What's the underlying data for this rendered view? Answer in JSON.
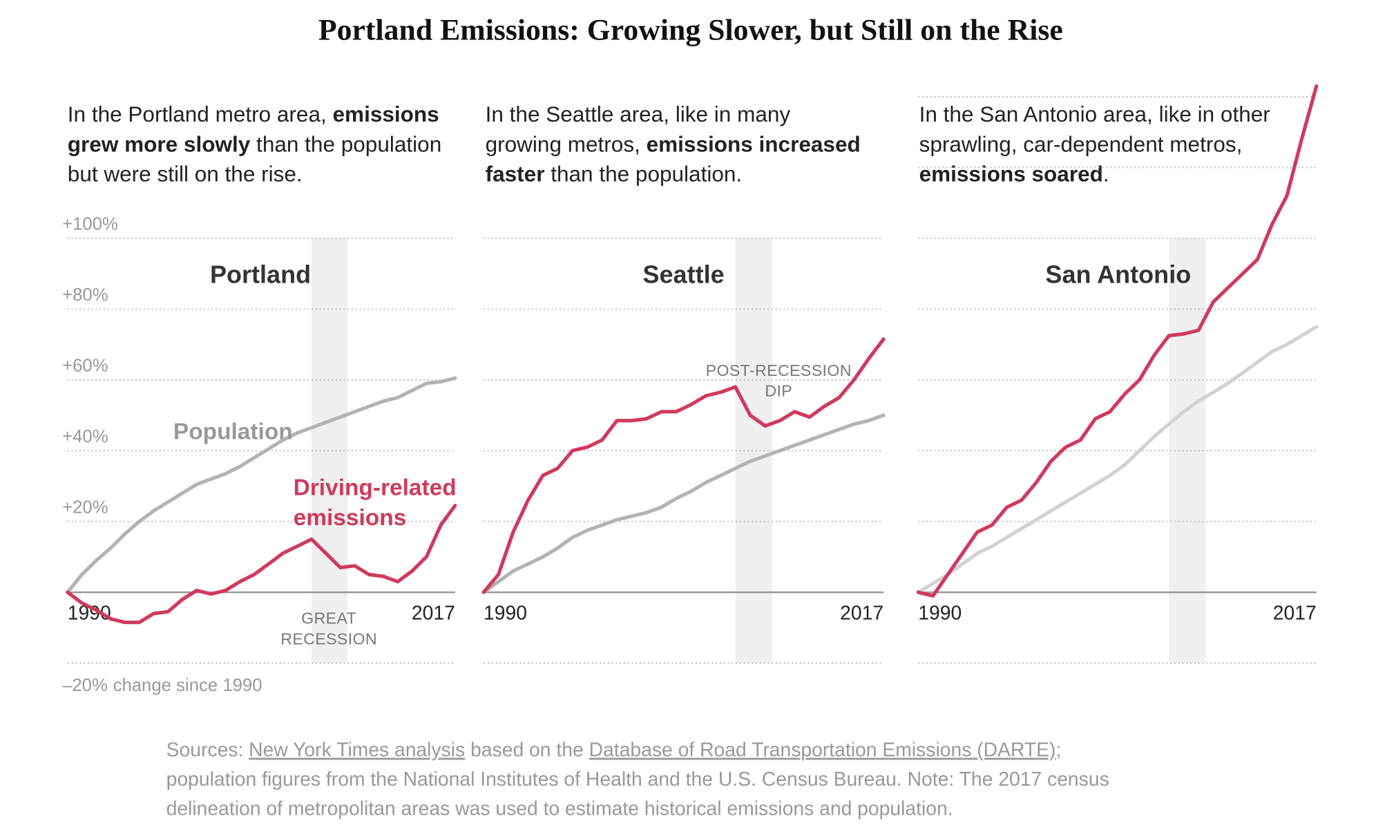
{
  "title": "Portland Emissions: Growing Slower, but Still on the Rise",
  "sources": [
    [
      {
        "text": "Sources: "
      },
      {
        "text": "New York Times analysis",
        "link": true
      },
      {
        "text": " based on the "
      },
      {
        "text": "Database of Road Transportation Emissions (DARTE)",
        "link": true
      },
      {
        "text": ";"
      }
    ],
    [
      {
        "text": "population figures from the National Institutes of Health and the U.S. Census Bureau. Note: The 2017 census"
      }
    ],
    [
      {
        "text": "delineation of metropolitan areas was used to estimate historical emissions and population."
      }
    ]
  ],
  "chart_data": [
    {
      "type": "line",
      "title": "Portland",
      "intro": [
        [
          {
            "text": "In the Portland metro area, "
          },
          {
            "text": "emissions",
            "bold": true
          }
        ],
        [
          {
            "text": "grew more slowly",
            "bold": true
          },
          {
            "text": " than the population"
          }
        ],
        [
          {
            "text": "but were still on the rise."
          }
        ]
      ],
      "x": [
        1990,
        1991,
        1992,
        1993,
        1994,
        1995,
        1996,
        1997,
        1998,
        1999,
        2000,
        2001,
        2002,
        2003,
        2004,
        2005,
        2006,
        2007,
        2008,
        2009,
        2010,
        2011,
        2012,
        2013,
        2014,
        2015,
        2016,
        2017
      ],
      "xlim": [
        1990,
        2017
      ],
      "xticks": [
        1990,
        2017
      ],
      "ylim": [
        -20,
        100
      ],
      "yticks": [
        {
          "value": -20,
          "label": "–20%"
        },
        {
          "value": 20,
          "label": "+20%"
        },
        {
          "value": 40,
          "label": "+40%"
        },
        {
          "value": 60,
          "label": "+60%"
        },
        {
          "value": 80,
          "label": "+80%"
        },
        {
          "value": 100,
          "label": "+100%"
        }
      ],
      "y_axis_note": "change since 1990",
      "recession": [
        2007,
        2009.5
      ],
      "annotation": [
        "GREAT",
        "RECESSION"
      ],
      "series": [
        {
          "name": "Population",
          "color": "#b3b3b3",
          "values": [
            0,
            5,
            9,
            12.5,
            16.5,
            20,
            23,
            25.5,
            28,
            30.5,
            32,
            33.5,
            35.5,
            38,
            40.5,
            43,
            45,
            46.5,
            48,
            49.5,
            51,
            52.5,
            54,
            55,
            57,
            59,
            59.5,
            60.5
          ]
        },
        {
          "name": "Driving-related emissions",
          "color": "#cf3a5e",
          "values": [
            0,
            -3,
            -5,
            -7.5,
            -8.5,
            -8.5,
            -6,
            -5.5,
            -2,
            0.5,
            -0.5,
            0.5,
            3,
            5,
            8,
            11,
            13,
            15,
            11,
            7,
            7.5,
            5,
            4.5,
            3,
            6,
            10,
            19,
            24.5
          ]
        }
      ]
    },
    {
      "type": "line",
      "title": "Seattle",
      "intro": [
        [
          {
            "text": "In the Seattle area, like in many"
          }
        ],
        [
          {
            "text": "growing metros, "
          },
          {
            "text": "emissions increased",
            "bold": true
          }
        ],
        [
          {
            "text": "faster",
            "bold": true
          },
          {
            "text": " than the population."
          }
        ]
      ],
      "x": [
        1990,
        1991,
        1992,
        1993,
        1994,
        1995,
        1996,
        1997,
        1998,
        1999,
        2000,
        2001,
        2002,
        2003,
        2004,
        2005,
        2006,
        2007,
        2008,
        2009,
        2010,
        2011,
        2012,
        2013,
        2014,
        2015,
        2016,
        2017
      ],
      "xlim": [
        1990,
        2017
      ],
      "xticks": [
        1990,
        2017
      ],
      "ylim": [
        -20,
        100
      ],
      "yticks": [
        -20,
        20,
        40,
        60,
        80,
        100
      ],
      "recession": [
        2007,
        2009.5
      ],
      "annotation": [
        "POST-RECESSION",
        "DIP"
      ],
      "series": [
        {
          "color": "#b3b3b3",
          "values": [
            0,
            3,
            6,
            8,
            10,
            12.5,
            15.5,
            17.5,
            19,
            20.5,
            21.5,
            22.5,
            24,
            26.5,
            28.5,
            31,
            33,
            35,
            37,
            38.5,
            40,
            41.5,
            43,
            44.5,
            46,
            47.5,
            48.5,
            50
          ]
        },
        {
          "color": "#cf3a5e",
          "values": [
            0,
            5,
            17,
            26,
            33,
            35,
            40,
            41,
            43,
            48.5,
            48.5,
            49,
            51,
            51,
            53,
            55.5,
            56.5,
            58,
            50,
            47,
            48.5,
            51,
            49.5,
            52.5,
            55,
            60,
            66,
            71.5
          ]
        }
      ]
    },
    {
      "type": "line",
      "title": "San Antonio",
      "intro": [
        [
          {
            "text": "In the San Antonio area, like in other"
          }
        ],
        [
          {
            "text": "sprawling, car-dependent metros,"
          }
        ],
        [
          {
            "text": "emissions soared",
            "bold": true
          },
          {
            "text": "."
          }
        ]
      ],
      "x": [
        1990,
        1991,
        1992,
        1993,
        1994,
        1995,
        1996,
        1997,
        1998,
        1999,
        2000,
        2001,
        2002,
        2003,
        2004,
        2005,
        2006,
        2007,
        2008,
        2009,
        2010,
        2011,
        2012,
        2013,
        2014,
        2015,
        2016,
        2017
      ],
      "xlim": [
        1990,
        2017
      ],
      "xticks": [
        1990,
        2017
      ],
      "ylim": [
        -20,
        145
      ],
      "yticks": [
        -20,
        20,
        40,
        60,
        80,
        100,
        120,
        140
      ],
      "recession": [
        2007,
        2009.5
      ],
      "series": [
        {
          "color": "#d2d2d2",
          "values": [
            0,
            2.5,
            5,
            8,
            11,
            13,
            15.5,
            18,
            20.5,
            23,
            25.5,
            28,
            30.5,
            33,
            36,
            40,
            44,
            47.5,
            51,
            54,
            56.5,
            59,
            62,
            65,
            68,
            70,
            72.5,
            75
          ]
        },
        {
          "color": "#cf3a5e",
          "values": [
            0,
            -1,
            5,
            11,
            17,
            19,
            24,
            26,
            31,
            37,
            41,
            43,
            49,
            51,
            56,
            60,
            67,
            72.5,
            73,
            74,
            82,
            86,
            90,
            94,
            104,
            112,
            128,
            143
          ]
        }
      ]
    }
  ]
}
